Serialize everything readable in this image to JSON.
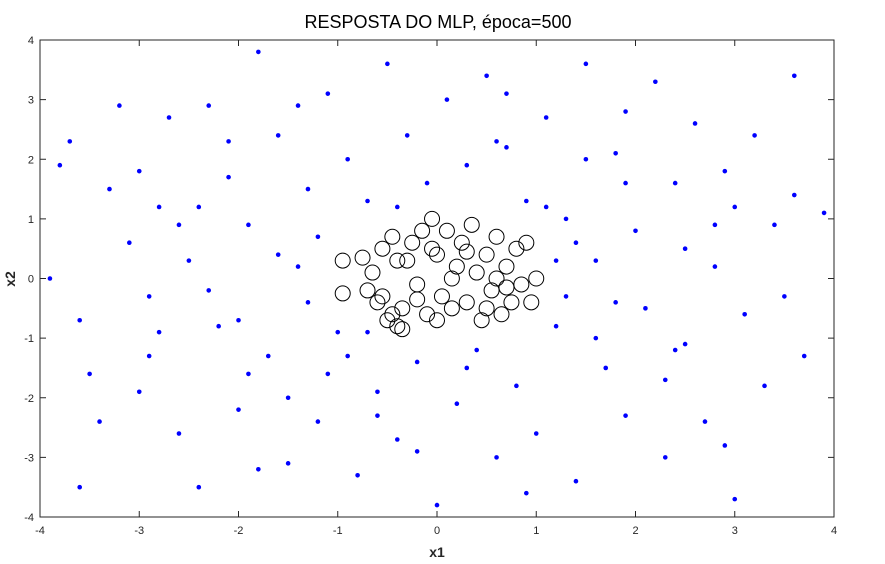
{
  "chart_data": {
    "type": "scatter",
    "title": "RESPOSTA DO MLP, época=500",
    "xlabel": "x1",
    "ylabel": "x2",
    "xlim": [
      -4,
      4
    ],
    "ylim": [
      -4,
      4
    ],
    "xticks": [
      "-4",
      "-3",
      "-2",
      "-1",
      "0",
      "1",
      "2",
      "3",
      "4"
    ],
    "yticks": [
      "-4",
      "-3",
      "-2",
      "-1",
      "0",
      "1",
      "2",
      "3",
      "4"
    ],
    "grid": false,
    "colors": {
      "outer": "#0000ff",
      "inner": "#000000",
      "axes": "#262626"
    },
    "series": [
      {
        "marker": "dot",
        "color": "#0000ff",
        "points": [
          [
            -3.8,
            1.9
          ],
          [
            -3.7,
            2.3
          ],
          [
            -3.6,
            -0.7
          ],
          [
            -3.5,
            -1.6
          ],
          [
            -3.3,
            1.5
          ],
          [
            -3.2,
            2.9
          ],
          [
            -3.1,
            0.6
          ],
          [
            -3.0,
            -1.9
          ],
          [
            -2.9,
            -0.3
          ],
          [
            -2.8,
            1.2
          ],
          [
            -2.7,
            2.7
          ],
          [
            -2.6,
            -2.6
          ],
          [
            -2.5,
            0.3
          ],
          [
            -2.4,
            -3.5
          ],
          [
            -2.3,
            2.9
          ],
          [
            -2.2,
            -0.8
          ],
          [
            -2.1,
            1.7
          ],
          [
            -2.0,
            -2.2
          ],
          [
            -1.9,
            0.9
          ],
          [
            -1.8,
            3.8
          ],
          [
            -1.7,
            -1.3
          ],
          [
            -1.6,
            2.4
          ],
          [
            -1.5,
            -3.1
          ],
          [
            -1.4,
            0.2
          ],
          [
            -1.3,
            1.5
          ],
          [
            -1.2,
            -2.4
          ],
          [
            -1.1,
            3.1
          ],
          [
            -1.0,
            -0.9
          ],
          [
            -0.9,
            2.0
          ],
          [
            -0.8,
            -3.3
          ],
          [
            -0.7,
            1.3
          ],
          [
            -0.6,
            -1.9
          ],
          [
            -0.5,
            3.6
          ],
          [
            -0.4,
            -2.7
          ],
          [
            -0.3,
            2.4
          ],
          [
            -0.2,
            -1.4
          ],
          [
            -0.1,
            1.6
          ],
          [
            0.0,
            -3.8
          ],
          [
            0.1,
            3.0
          ],
          [
            0.2,
            -2.1
          ],
          [
            0.3,
            1.9
          ],
          [
            0.4,
            -1.2
          ],
          [
            0.5,
            3.4
          ],
          [
            0.6,
            -3.0
          ],
          [
            0.7,
            2.2
          ],
          [
            0.8,
            -1.8
          ],
          [
            0.9,
            1.3
          ],
          [
            1.0,
            -2.6
          ],
          [
            1.1,
            2.7
          ],
          [
            1.2,
            -0.8
          ],
          [
            1.3,
            1.0
          ],
          [
            1.4,
            -3.4
          ],
          [
            1.5,
            3.6
          ],
          [
            1.6,
            0.3
          ],
          [
            1.7,
            -1.5
          ],
          [
            1.8,
            2.1
          ],
          [
            1.9,
            -2.3
          ],
          [
            2.0,
            0.8
          ],
          [
            2.1,
            -0.5
          ],
          [
            2.2,
            3.3
          ],
          [
            2.3,
            -3.0
          ],
          [
            2.4,
            1.6
          ],
          [
            2.5,
            -1.1
          ],
          [
            2.6,
            2.6
          ],
          [
            2.7,
            -2.4
          ],
          [
            2.8,
            0.2
          ],
          [
            2.9,
            1.8
          ],
          [
            3.0,
            -3.7
          ],
          [
            3.1,
            -0.6
          ],
          [
            3.2,
            2.4
          ],
          [
            3.3,
            -1.8
          ],
          [
            3.4,
            0.9
          ],
          [
            3.5,
            -0.3
          ],
          [
            3.6,
            1.4
          ],
          [
            3.7,
            -1.3
          ],
          [
            3.9,
            1.1
          ],
          [
            -3.9,
            0.0
          ],
          [
            -3.4,
            -2.4
          ],
          [
            -2.9,
            -1.3
          ],
          [
            -2.3,
            -0.2
          ],
          [
            -1.8,
            -3.2
          ],
          [
            -1.3,
            -0.4
          ],
          [
            -0.7,
            -0.9
          ],
          [
            1.3,
            -0.3
          ],
          [
            2.5,
            0.5
          ],
          [
            3.0,
            1.2
          ],
          [
            -2.1,
            2.3
          ],
          [
            -1.4,
            2.9
          ],
          [
            0.7,
            3.1
          ],
          [
            1.9,
            2.8
          ],
          [
            -2.6,
            0.9
          ],
          [
            -1.1,
            -1.6
          ],
          [
            1.6,
            -1.0
          ],
          [
            2.3,
            -1.7
          ],
          [
            -3.0,
            1.8
          ],
          [
            -0.2,
            -2.9
          ],
          [
            0.9,
            -3.6
          ],
          [
            2.9,
            -2.8
          ],
          [
            -2.0,
            -0.7
          ],
          [
            1.2,
            0.3
          ],
          [
            -1.6,
            0.4
          ],
          [
            1.8,
            -0.4
          ],
          [
            0.3,
            -1.5
          ],
          [
            -0.4,
            1.2
          ],
          [
            -3.6,
            -3.5
          ],
          [
            3.6,
            3.4
          ],
          [
            -1.5,
            -2.0
          ],
          [
            1.5,
            2.0
          ],
          [
            -2.4,
            1.2
          ],
          [
            2.4,
            -1.2
          ],
          [
            -1.2,
            0.7
          ],
          [
            1.4,
            0.6
          ],
          [
            -0.6,
            -2.3
          ],
          [
            0.6,
            2.3
          ],
          [
            -2.8,
            -0.9
          ],
          [
            2.8,
            0.9
          ],
          [
            -1.9,
            -1.6
          ],
          [
            1.9,
            1.6
          ],
          [
            -0.9,
            -1.3
          ],
          [
            1.1,
            1.2
          ]
        ]
      },
      {
        "marker": "circle",
        "color": "#000000",
        "points": [
          [
            -0.95,
            0.3
          ],
          [
            -0.95,
            -0.25
          ],
          [
            -0.75,
            0.35
          ],
          [
            -0.7,
            -0.2
          ],
          [
            -0.65,
            0.1
          ],
          [
            -0.6,
            -0.4
          ],
          [
            -0.55,
            0.5
          ],
          [
            -0.5,
            -0.7
          ],
          [
            -0.45,
            0.7
          ],
          [
            -0.4,
            -0.8
          ],
          [
            -0.35,
            -0.5
          ],
          [
            -0.3,
            0.3
          ],
          [
            -0.25,
            0.6
          ],
          [
            -0.2,
            -0.1
          ],
          [
            -0.15,
            0.8
          ],
          [
            -0.1,
            -0.6
          ],
          [
            -0.05,
            1.0
          ],
          [
            0.0,
            0.4
          ],
          [
            0.05,
            -0.3
          ],
          [
            0.1,
            0.8
          ],
          [
            0.15,
            -0.5
          ],
          [
            0.2,
            0.2
          ],
          [
            0.25,
            0.6
          ],
          [
            0.3,
            -0.4
          ],
          [
            0.35,
            0.9
          ],
          [
            0.4,
            0.1
          ],
          [
            0.45,
            -0.7
          ],
          [
            0.5,
            0.4
          ],
          [
            0.55,
            -0.2
          ],
          [
            0.6,
            0.7
          ],
          [
            0.65,
            -0.6
          ],
          [
            0.7,
            0.2
          ],
          [
            0.75,
            -0.4
          ],
          [
            0.8,
            0.5
          ],
          [
            0.85,
            -0.1
          ],
          [
            0.9,
            0.6
          ],
          [
            0.95,
            -0.4
          ],
          [
            1.0,
            0.0
          ],
          [
            -0.4,
            0.3
          ],
          [
            0.15,
            0.0
          ],
          [
            -0.2,
            -0.35
          ],
          [
            0.3,
            0.45
          ],
          [
            -0.55,
            -0.3
          ],
          [
            0.5,
            -0.5
          ],
          [
            -0.05,
            0.5
          ],
          [
            0.7,
            -0.15
          ],
          [
            -0.35,
            -0.85
          ],
          [
            0.6,
            0.0
          ],
          [
            0.0,
            -0.7
          ],
          [
            -0.45,
            -0.6
          ]
        ]
      }
    ]
  }
}
